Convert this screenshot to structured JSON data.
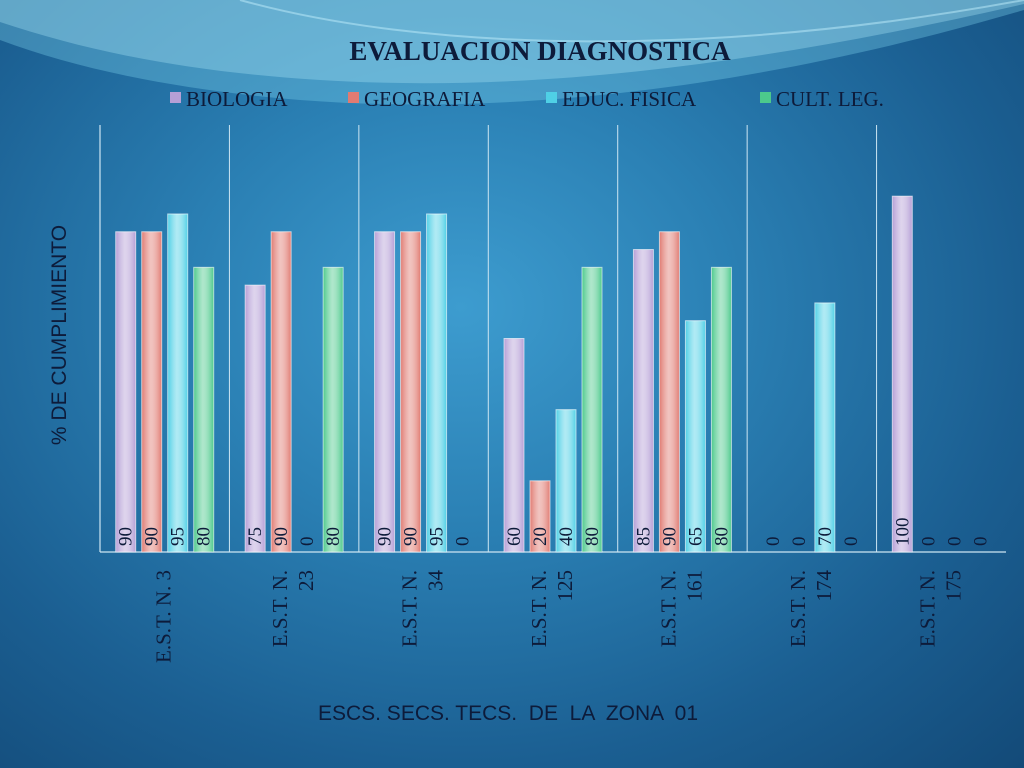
{
  "chart_data": {
    "type": "bar",
    "title": "EVALUACION DIAGNOSTICA",
    "xlabel": "ESCS. SECS. TECS.  DE  LA  ZONA  01",
    "ylabel": "%  DE CUMPLIMIENTO",
    "legend_position": "top",
    "grid": false,
    "ylim": [
      0,
      120
    ],
    "categories": [
      [
        "E.S.T. N. 3"
      ],
      [
        "E.S.T. N.",
        "23"
      ],
      [
        "E.S.T. N.",
        "34"
      ],
      [
        "E.S.T. N.",
        "125"
      ],
      [
        "E.S.T. N.",
        "161"
      ],
      [
        "E.S.T. N.",
        "174"
      ],
      [
        "E.S.T. N.",
        "175"
      ]
    ],
    "series": [
      {
        "name": "BIOLOGIA",
        "color": "#b59fd6",
        "values": [
          90,
          75,
          90,
          60,
          85,
          0,
          100
        ]
      },
      {
        "name": "GEOGRAFIA",
        "color": "#e07b72",
        "values": [
          90,
          90,
          90,
          20,
          90,
          0,
          0
        ]
      },
      {
        "name": "EDUC. FISICA",
        "color": "#4fd0e6",
        "values": [
          95,
          0,
          95,
          40,
          65,
          70,
          0
        ]
      },
      {
        "name": "CULT. LEG.",
        "color": "#4cc98c",
        "values": [
          80,
          80,
          0,
          80,
          80,
          0,
          0
        ]
      }
    ]
  }
}
